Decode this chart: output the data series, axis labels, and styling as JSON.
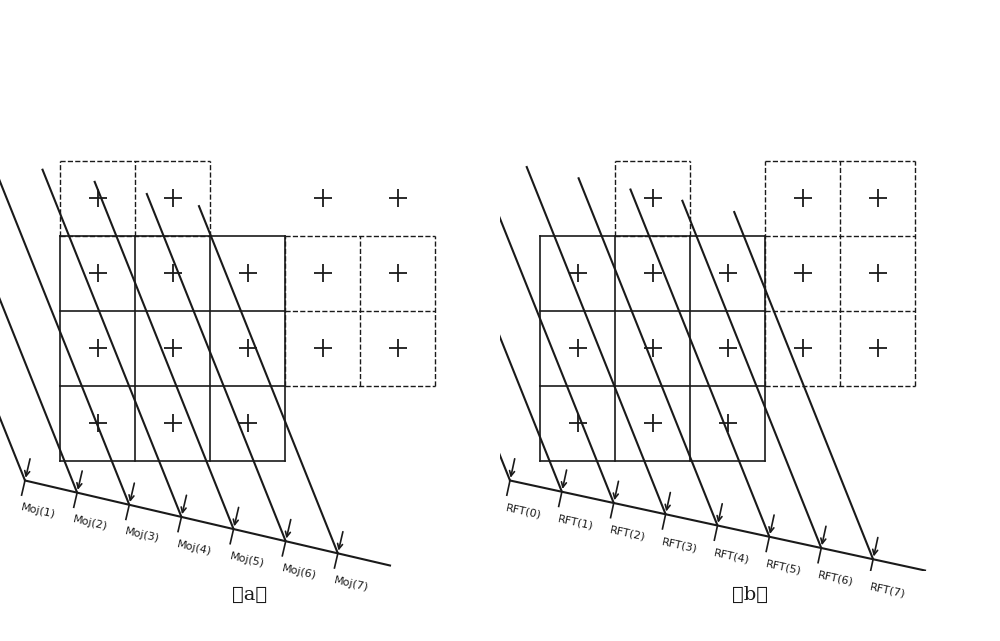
{
  "fig_width": 10.0,
  "fig_height": 6.41,
  "bg_color": "#ffffff",
  "line_color": "#1a1a1a",
  "panel_a_label": "（a）",
  "panel_b_label": "（b）",
  "moj_labels": [
    "Moj(1)",
    "Moj(2)",
    "Moj(3)",
    "Moj(4)",
    "Moj(5)",
    "Moj(6)",
    "Moj(7)"
  ],
  "rft_labels": [
    "RFT(0)",
    "RFT(1)",
    "RFT(2)",
    "RFT(3)",
    "RFT(4)",
    "RFT(5)",
    "RFT(6)",
    "RFT(7)"
  ]
}
